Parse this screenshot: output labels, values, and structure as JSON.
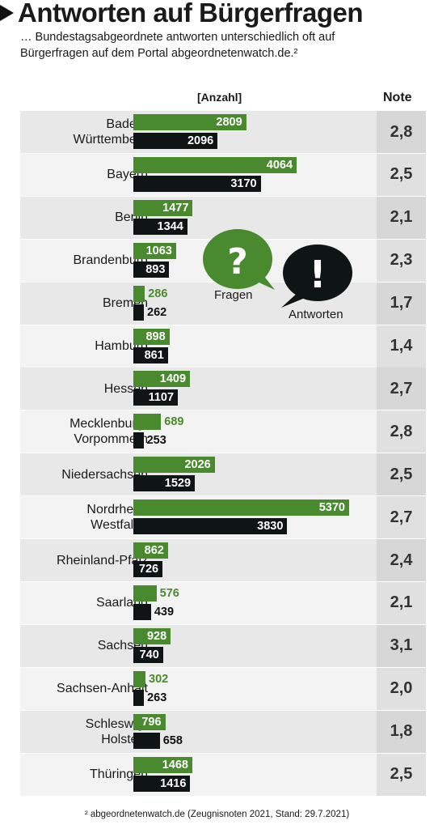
{
  "title": "Antworten auf Bürgerfragen",
  "subtitle": "… Bundestagsabgeordnete antworten unterschiedlich oft auf Bürgerfragen auf dem Portal abgeordnetenwatch.de.²",
  "legend": {
    "questions": "Fragen",
    "answers": "Antworten"
  },
  "colors": {
    "questions": "#4a8a2e",
    "answers": "#0f1414"
  },
  "footnote": "² abgeordnetenwatch.de (Zeugnisnoten 2021, Stand: 29.7.2021)",
  "chart_data": {
    "type": "bar",
    "orientation": "horizontal",
    "title": "Antworten auf Bürgerfragen",
    "value_header": "[Anzahl]",
    "grade_header": "Note",
    "categories": [
      "Baden-\nWürttemberg",
      "Bayern",
      "Berlin",
      "Brandenburg",
      "Bremen",
      "Hamburg",
      "Hessen",
      "Mecklenburg-\nVorpommern",
      "Niedersachsen",
      "Nordrhein-\nWestfalen",
      "Rheinland-Pfalz",
      "Saarland",
      "Sachsen",
      "Sachsen-Anhalt",
      "Schleswig-\nHolstein",
      "Thüringen"
    ],
    "series": [
      {
        "name": "Fragen",
        "values": [
          2809,
          4064,
          1477,
          1063,
          286,
          898,
          1409,
          689,
          2026,
          5370,
          862,
          576,
          928,
          302,
          796,
          1468
        ]
      },
      {
        "name": "Antworten",
        "values": [
          2096,
          3170,
          1344,
          893,
          262,
          861,
          1107,
          253,
          1529,
          3830,
          726,
          439,
          740,
          263,
          658,
          1416
        ]
      }
    ],
    "grades": [
      "2,8",
      "2,5",
      "2,1",
      "2,3",
      "1,7",
      "1,4",
      "2,7",
      "2,8",
      "2,5",
      "2,7",
      "2,4",
      "2,1",
      "3,1",
      "2,0",
      "1,8",
      "2,5"
    ],
    "xlim": [
      0,
      5370
    ]
  }
}
